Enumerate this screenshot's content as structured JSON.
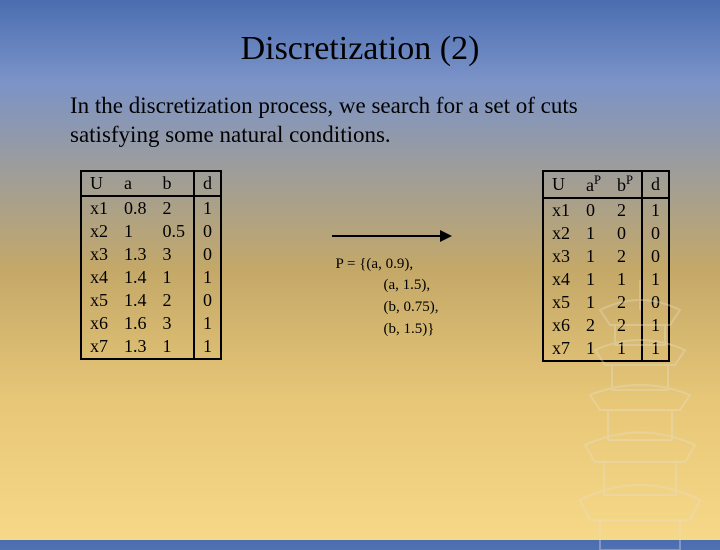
{
  "title": "Discretization (2)",
  "body_text": "In the discretization process, we search for a set of cuts satisfying some natural conditions.",
  "table_left": {
    "headers": [
      "U",
      "a",
      "b",
      "d"
    ],
    "rows": [
      [
        "x1",
        "0.8",
        "2",
        "1"
      ],
      [
        "x2",
        "1",
        "0.5",
        "0"
      ],
      [
        "x3",
        "1.3",
        "3",
        "0"
      ],
      [
        "x4",
        "1.4",
        "1",
        "1"
      ],
      [
        "x5",
        "1.4",
        "2",
        "0"
      ],
      [
        "x6",
        "1.6",
        "3",
        "1"
      ],
      [
        "x7",
        "1.3",
        "1",
        "1"
      ]
    ]
  },
  "p_set": {
    "lead": "P = {(a, 0.9),",
    "lines": [
      "(a, 1.5),",
      "(b, 0.75),",
      "(b, 1.5)}"
    ]
  },
  "table_right": {
    "headers_html": [
      "U",
      "a<sup>P</sup>",
      "b<sup>P</sup>",
      "d"
    ],
    "rows": [
      [
        "x1",
        "0",
        "2",
        "1"
      ],
      [
        "x2",
        "1",
        "0",
        "0"
      ],
      [
        "x3",
        "1",
        "2",
        "0"
      ],
      [
        "x4",
        "1",
        "1",
        "1"
      ],
      [
        "x5",
        "1",
        "2",
        "0"
      ],
      [
        "x6",
        "2",
        "2",
        "1"
      ],
      [
        "x7",
        "1",
        "1",
        "1"
      ]
    ]
  },
  "colors": {
    "gradient_top": "#4a6db0",
    "gradient_bottom": "#f5d888",
    "pagoda": "#d0c8b8",
    "text": "#000000"
  }
}
